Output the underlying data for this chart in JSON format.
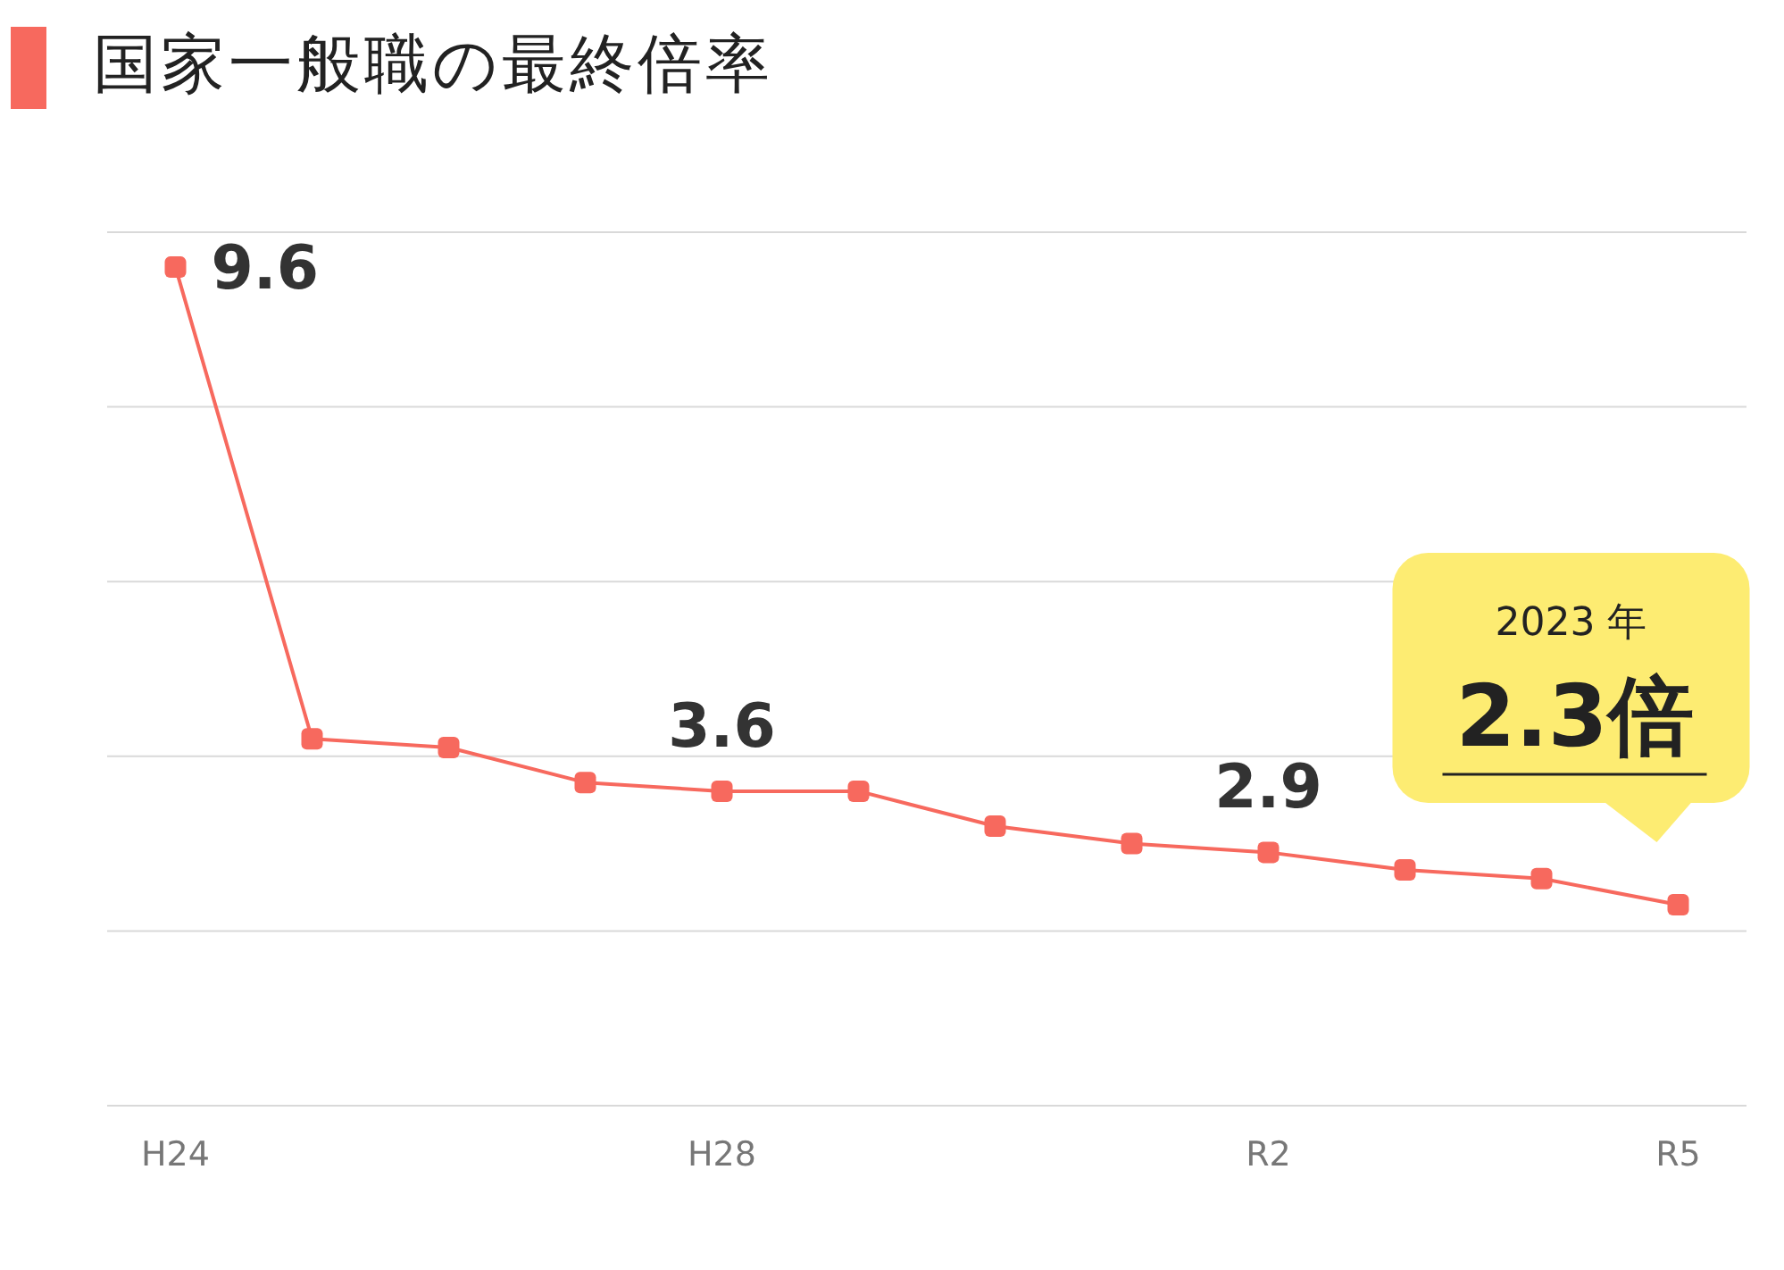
{
  "chart_data": {
    "type": "line",
    "title": "国家一般職の最終倍率",
    "categories": [
      "H24",
      null,
      null,
      null,
      "H28",
      null,
      null,
      null,
      "R2",
      null,
      null,
      "R5"
    ],
    "series": [
      {
        "color": "#f7695e",
        "values": [
          9.6,
          4.2,
          4.1,
          3.7,
          3.6,
          3.6,
          3.2,
          3.0,
          2.9,
          2.7,
          2.6,
          2.3
        ],
        "value_labels": [
          "9.6",
          null,
          null,
          null,
          "3.6",
          null,
          null,
          null,
          "2.9",
          null,
          null,
          "2.3倍"
        ]
      }
    ],
    "ylim": [
      0,
      10
    ],
    "yticks": [
      {
        "value": 0,
        "label": null
      },
      {
        "value": 2,
        "label": null
      },
      {
        "value": 4,
        "label": null
      },
      {
        "value": 6,
        "label": null
      },
      {
        "value": 8,
        "label": null
      },
      {
        "value": 10,
        "label": null
      }
    ],
    "tick_labels": "x",
    "grid": "y",
    "legend": false,
    "marker": "square",
    "line_style": "solid",
    "annotations": [
      "2023 年"
    ]
  }
}
